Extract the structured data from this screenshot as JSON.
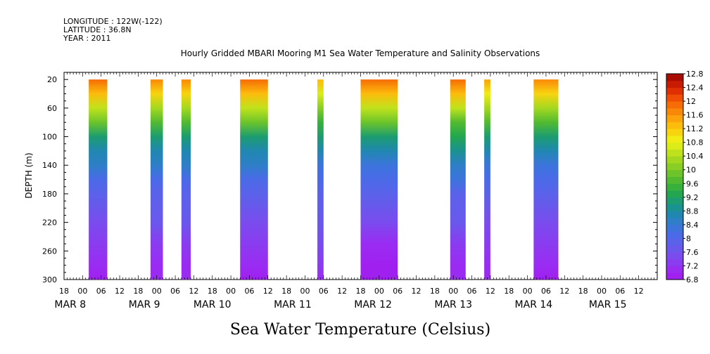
{
  "header": {
    "longitude": "LONGITUDE : 122W(-122)",
    "latitude": "LATITUDE : 36.8N",
    "year": "YEAR : 2011"
  },
  "chart_data": {
    "type": "heatmap",
    "title": "Hourly Gridded MBARI Mooring M1 Sea Water Temperature and Salinity Observations",
    "xlabel": "",
    "ylabel": "DEPTH (m)",
    "caption": "Sea Water Temperature (Celsius)",
    "x_unit": "hours since MAR 8 00:00",
    "xlim": [
      -6,
      186
    ],
    "ylim": [
      300,
      10
    ],
    "y_ticks": [
      20,
      60,
      100,
      140,
      180,
      220,
      260,
      300
    ],
    "x_hour_ticks": [
      -6,
      0,
      6,
      12,
      18,
      24,
      30,
      36,
      42,
      48,
      54,
      60,
      66,
      72,
      78,
      84,
      90,
      96,
      102,
      108,
      114,
      120,
      126,
      132,
      138,
      144,
      150,
      156,
      162,
      168,
      174,
      180
    ],
    "x_hour_labels": [
      "18",
      "00",
      "06",
      "12",
      "18",
      "00",
      "06",
      "12",
      "18",
      "00",
      "06",
      "12",
      "18",
      "00",
      "06",
      "12",
      "18",
      "00",
      "06",
      "12",
      "18",
      "00",
      "06",
      "12",
      "18",
      "00",
      "06",
      "12",
      "18",
      "00",
      "06",
      "12"
    ],
    "date_labels": [
      {
        "label": "MAR  8",
        "hour": -4
      },
      {
        "label": "MAR  9",
        "hour": 20
      },
      {
        "label": "MAR 10",
        "hour": 42
      },
      {
        "label": "MAR 11",
        "hour": 68
      },
      {
        "label": "MAR 12",
        "hour": 94
      },
      {
        "label": "MAR 13",
        "hour": 120
      },
      {
        "label": "MAR 14",
        "hour": 146
      },
      {
        "label": "MAR 15",
        "hour": 170
      }
    ],
    "colorbar": {
      "levels": [
        6.8,
        7.0,
        7.2,
        7.4,
        7.6,
        7.8,
        8.0,
        8.2,
        8.4,
        8.6,
        8.8,
        9.0,
        9.2,
        9.4,
        9.6,
        9.8,
        10.0,
        10.2,
        10.4,
        10.6,
        10.8,
        11.0,
        11.2,
        11.4,
        11.6,
        11.8,
        12.0,
        12.2,
        12.4,
        12.6,
        12.8
      ],
      "tick_labels": [
        "6.8",
        "7.2",
        "7.6",
        "8",
        "8.4",
        "8.8",
        "9.2",
        "9.6",
        "10",
        "10.4",
        "10.8",
        "11.2",
        "11.6",
        "12",
        "12.4",
        "12.8"
      ],
      "colors": [
        "#a020f0",
        "#9a2cf2",
        "#8a3cf0",
        "#7a4cee",
        "#6a58ec",
        "#5a62ea",
        "#4a6ae8",
        "#3c74dc",
        "#2e7ec8",
        "#2088b0",
        "#1a9290",
        "#1c9c70",
        "#22a650",
        "#38b03c",
        "#52ba30",
        "#6cc42a",
        "#88ce24",
        "#a4d820",
        "#c0e21c",
        "#dcec18",
        "#f0ec14",
        "#f8d410",
        "#fcbc0c",
        "#fca20a",
        "#fa8808",
        "#f66c06",
        "#f04e04",
        "#e03002",
        "#c81c02",
        "#a80c02"
      ]
    },
    "segments": [
      {
        "start": 2,
        "end": 8,
        "min_temp": 6.9,
        "surface_temp": 12.0
      },
      {
        "start": 22,
        "end": 26,
        "min_temp": 7.0,
        "surface_temp": 11.8
      },
      {
        "start": 32,
        "end": 35,
        "min_temp": 7.0,
        "surface_temp": 11.8
      },
      {
        "start": 51,
        "end": 60,
        "min_temp": 6.9,
        "surface_temp": 12.0
      },
      {
        "start": 76,
        "end": 78,
        "min_temp": 7.1,
        "surface_temp": 11.4
      },
      {
        "start": 90,
        "end": 102,
        "min_temp": 6.8,
        "surface_temp": 12.1
      },
      {
        "start": 119,
        "end": 124,
        "min_temp": 7.0,
        "surface_temp": 11.9
      },
      {
        "start": 130,
        "end": 132,
        "min_temp": 7.0,
        "surface_temp": 11.6
      },
      {
        "start": 146,
        "end": 154,
        "min_temp": 6.9,
        "surface_temp": 11.8
      }
    ],
    "profile": [
      {
        "depth": 10,
        "temp_frac": 1.0
      },
      {
        "depth": 20,
        "temp_frac": 0.98
      },
      {
        "depth": 40,
        "temp_frac": 0.86
      },
      {
        "depth": 60,
        "temp_frac": 0.7
      },
      {
        "depth": 80,
        "temp_frac": 0.57
      },
      {
        "depth": 100,
        "temp_frac": 0.45
      },
      {
        "depth": 120,
        "temp_frac": 0.37
      },
      {
        "depth": 140,
        "temp_frac": 0.3
      },
      {
        "depth": 160,
        "temp_frac": 0.25
      },
      {
        "depth": 180,
        "temp_frac": 0.2
      },
      {
        "depth": 220,
        "temp_frac": 0.13
      },
      {
        "depth": 250,
        "temp_frac": 0.07
      },
      {
        "depth": 280,
        "temp_frac": 0.03
      },
      {
        "depth": 300,
        "temp_frac": 0.0
      }
    ]
  }
}
